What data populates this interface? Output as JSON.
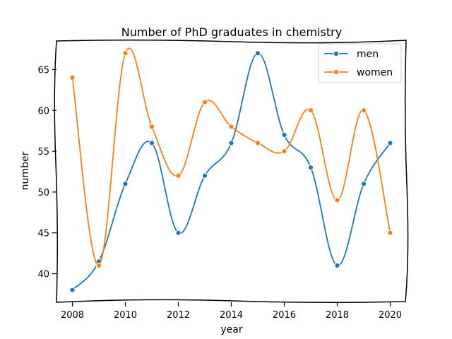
{
  "chart_data": {
    "type": "line",
    "title": "Number of PhD graduates in chemistry",
    "xlabel": "year",
    "ylabel": "number",
    "x": [
      2008,
      2009,
      2010,
      2011,
      2012,
      2013,
      2014,
      2015,
      2016,
      2017,
      2018,
      2019,
      2020
    ],
    "xlim": [
      2007.4,
      2020.6
    ],
    "ylim": [
      36.5,
      68.5
    ],
    "xticks": [
      2008,
      2010,
      2012,
      2014,
      2016,
      2018,
      2020
    ],
    "yticks": [
      40,
      45,
      50,
      55,
      60,
      65
    ],
    "grid": false,
    "legend_position": "top-right",
    "series": [
      {
        "name": "men",
        "color": "#1f77b4",
        "values": [
          38,
          41.5,
          51,
          56,
          45,
          52,
          56,
          67,
          57,
          53,
          41,
          51,
          56
        ]
      },
      {
        "name": "women",
        "color": "#ff7f0e",
        "values": [
          64,
          41,
          67,
          58,
          52,
          61,
          58,
          56,
          55,
          60,
          49,
          60,
          45
        ]
      }
    ]
  }
}
